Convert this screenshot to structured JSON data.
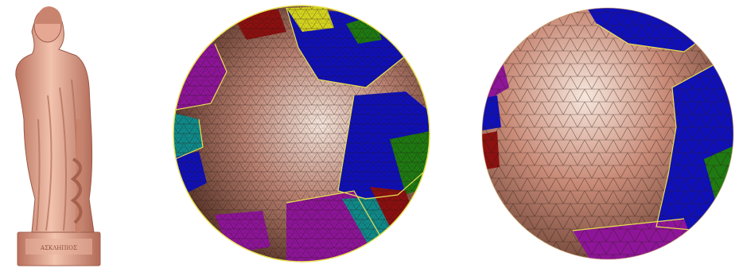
{
  "figure": {
    "panels": [
      {
        "id": "statue",
        "kind": "3d-mesh-render",
        "color": "#d9907a"
      },
      {
        "id": "disk",
        "kind": "planar-disk-parameterization"
      },
      {
        "id": "sphere",
        "kind": "spherical-parameterization"
      }
    ],
    "palette": {
      "skin_light": "#f6e6dc",
      "skin_mid": "#c98b78",
      "skin_dark": "#5a3529",
      "blue": "#1010b8",
      "magenta": "#8e1599",
      "green": "#1f7a12",
      "red": "#8c1010",
      "yellow": "#d4d420",
      "teal": "#108a8a",
      "boundary": "#e8e050",
      "wire": "#2a1a14"
    },
    "pedestal_text": "ΑΣΚΛΗΠΙΟΣ"
  }
}
